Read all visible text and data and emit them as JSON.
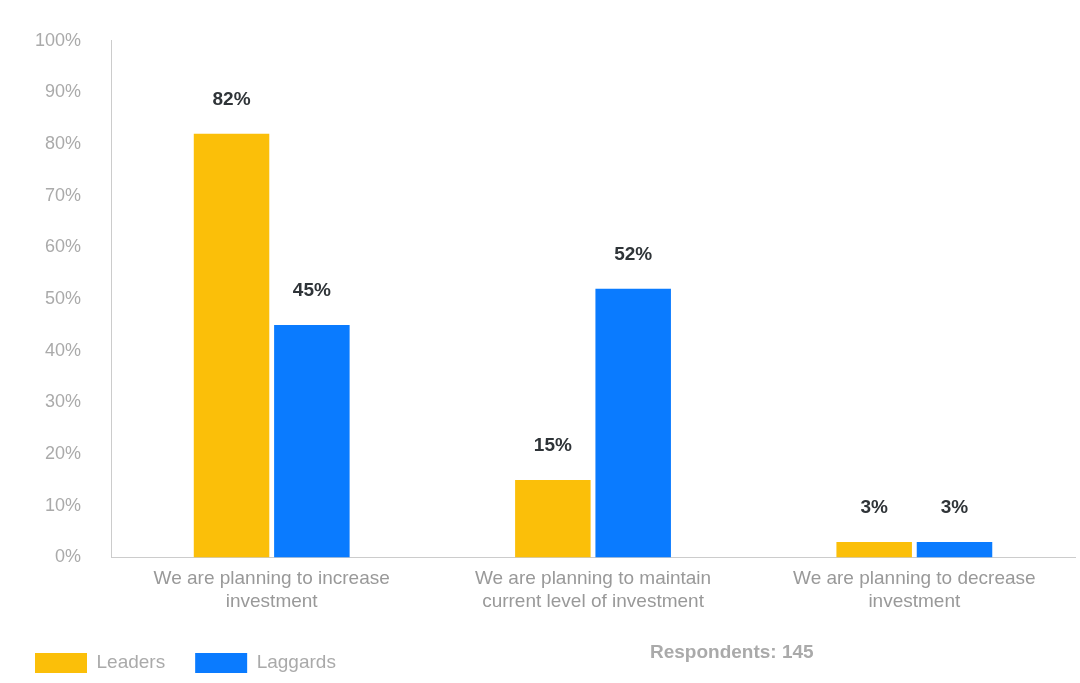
{
  "chart_data": {
    "type": "bar",
    "categories": [
      "We are planning to increase investment",
      "We are planning to maintain current level of investment",
      "We are planning to decrease investment"
    ],
    "series": [
      {
        "name": "Leaders",
        "color": "#fbbf09",
        "values": [
          82,
          15,
          3
        ],
        "value_labels": [
          "82%",
          "15%",
          "3%"
        ]
      },
      {
        "name": "Laggards",
        "color": "#0a7bff",
        "values": [
          45,
          52,
          3
        ],
        "value_labels": [
          "45%",
          "52%",
          "3%"
        ]
      }
    ],
    "ylim": [
      0,
      100
    ],
    "yticks": [
      {
        "value": 0,
        "label": "0%"
      },
      {
        "value": 10,
        "label": "10%"
      },
      {
        "value": 20,
        "label": "20%"
      },
      {
        "value": 30,
        "label": "30%"
      },
      {
        "value": 40,
        "label": "40%"
      },
      {
        "value": 50,
        "label": "50%"
      },
      {
        "value": 60,
        "label": "60%"
      },
      {
        "value": 70,
        "label": "70%"
      },
      {
        "value": 80,
        "label": "80%"
      },
      {
        "value": 90,
        "label": "90%"
      },
      {
        "value": 100,
        "label": "100%"
      }
    ],
    "grid": false,
    "legend": "bottom",
    "annotations": [
      "Respondents: 145"
    ]
  }
}
